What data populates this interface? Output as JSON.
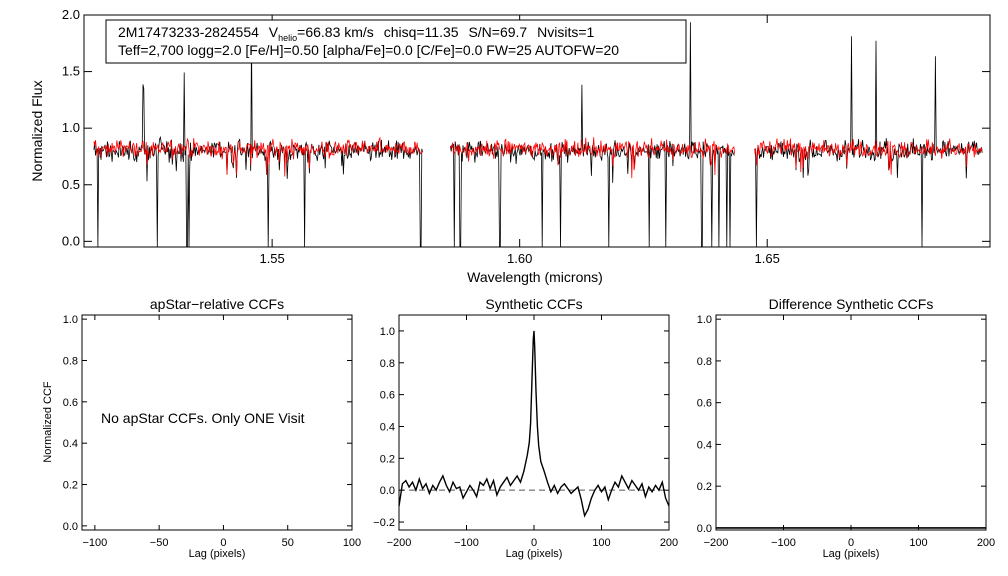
{
  "colors": {
    "observed": "#000000",
    "model": "#ff0000",
    "ccf": "#000000",
    "zero_line": "#555555"
  },
  "header": {
    "star_id": "2M17473233-2824554",
    "v_prefix": "V",
    "v_sub": "helio",
    "v_value": "=66.83 km/s",
    "chisq": "chisq=11.35",
    "snr": "S/N=69.7",
    "nvisits": "Nvisits=1",
    "params": "Teff=2,700 logg=2.0 [Fe/H]=0.50 [alpha/Fe]=0.0 [C/Fe]=0.0 FW=25 AUTOFW=20"
  },
  "panels": {
    "spectrum": {
      "ylabel": "Normalized Flux",
      "xlabel": "Wavelength (microns)"
    },
    "ap_ccf": {
      "title": "apStar−relative CCFs",
      "ylabel": "Normalized CCF",
      "xlabel": "Lag (pixels)",
      "message": "No apStar CCFs.  Only ONE Visit"
    },
    "syn_ccf": {
      "title": "Synthetic CCFs",
      "xlabel": "Lag (pixels)"
    },
    "diff_ccf": {
      "title": "Difference Synthetic CCFs",
      "xlabel": "Lag (pixels)"
    }
  },
  "chart_data": [
    {
      "type": "line",
      "xlim": [
        1.512,
        1.695
      ],
      "ylim": [
        -0.05,
        2.0
      ],
      "xticks": [
        1.55,
        1.6,
        1.65
      ],
      "xtick_labels": [
        "1.55",
        "1.60",
        "1.65"
      ],
      "yticks": [
        0.0,
        0.5,
        1.0,
        1.5,
        2.0
      ],
      "ytick_labels": [
        "0.0",
        "0.5",
        "1.0",
        "1.5",
        "2.0"
      ],
      "chip_ranges": [
        [
          1.514,
          1.5805
        ],
        [
          1.586,
          1.6435
        ],
        [
          1.6475,
          1.6935
        ]
      ],
      "series": [
        {
          "role": "observed",
          "mean_level": 0.8,
          "noise": 0.13
        },
        {
          "role": "model",
          "mean_level": 0.82,
          "noise": 0.11
        }
      ],
      "deep_lines": [
        1.5148,
        1.5268,
        1.5328,
        1.5332,
        1.5492,
        1.5565,
        1.58,
        1.5868,
        1.588,
        1.596,
        1.6045,
        1.6082,
        1.618,
        1.6262,
        1.6295,
        1.6368,
        1.6388,
        1.6402,
        1.6418,
        1.6425,
        1.6478,
        1.6812
      ],
      "spikes": [
        1.524,
        1.5322,
        1.5458,
        1.6125,
        1.6345,
        1.667,
        1.672,
        1.684
      ]
    },
    {
      "type": "line",
      "xlim": [
        -110,
        100
      ],
      "ylim": [
        -0.02,
        1.02
      ],
      "xticks": [
        -100,
        -50,
        0,
        50,
        100
      ],
      "xtick_labels": [
        "−100",
        "−50",
        "0",
        "50",
        "100"
      ],
      "yticks": [
        0.0,
        0.2,
        0.4,
        0.6,
        0.8,
        1.0
      ],
      "ytick_labels": [
        "0.0",
        "0.2",
        "0.4",
        "0.6",
        "0.8",
        "1.0"
      ],
      "series": []
    },
    {
      "type": "line",
      "xlim": [
        -200,
        200
      ],
      "ylim": [
        -0.25,
        1.1
      ],
      "xticks": [
        -200,
        -100,
        0,
        100,
        200
      ],
      "xtick_labels": [
        "−200",
        "−100",
        "0",
        "100",
        "200"
      ],
      "yticks": [
        -0.2,
        0.0,
        0.2,
        0.4,
        0.6,
        0.8,
        1.0
      ],
      "ytick_labels": [
        "−0.2",
        "0.0",
        "0.2",
        "0.4",
        "0.6",
        "0.8",
        "1.0"
      ],
      "zero_line": 0.0,
      "series": [
        {
          "x": [
            -200,
            -195,
            -190,
            -185,
            -180,
            -175,
            -170,
            -165,
            -160,
            -155,
            -150,
            -145,
            -140,
            -135,
            -130,
            -125,
            -120,
            -115,
            -110,
            -105,
            -100,
            -95,
            -90,
            -85,
            -80,
            -75,
            -70,
            -65,
            -60,
            -55,
            -50,
            -45,
            -40,
            -35,
            -30,
            -25,
            -20,
            -15,
            -10,
            -7,
            -5,
            -3,
            -1,
            0,
            1,
            3,
            5,
            7,
            10,
            15,
            20,
            25,
            30,
            35,
            40,
            45,
            50,
            55,
            60,
            65,
            70,
            75,
            80,
            85,
            90,
            95,
            100,
            105,
            110,
            115,
            120,
            125,
            130,
            135,
            140,
            145,
            150,
            155,
            160,
            165,
            170,
            175,
            180,
            185,
            190,
            195,
            200
          ],
          "y": [
            -0.1,
            0.04,
            0.06,
            0.02,
            0.05,
            0.0,
            0.07,
            0.01,
            0.04,
            -0.02,
            0.03,
            0.0,
            0.05,
            0.09,
            0.03,
            -0.01,
            0.05,
            0.01,
            0.02,
            -0.05,
            -0.01,
            0.03,
            0.0,
            -0.04,
            0.05,
            0.03,
            0.07,
            0.01,
            0.06,
            -0.03,
            0.02,
            0.05,
            0.08,
            0.03,
            0.06,
            0.09,
            0.05,
            0.12,
            0.22,
            0.3,
            0.42,
            0.7,
            0.95,
            1.0,
            0.9,
            0.62,
            0.4,
            0.28,
            0.18,
            0.12,
            0.05,
            -0.01,
            0.03,
            -0.02,
            0.02,
            0.04,
            0.01,
            -0.02,
            0.0,
            0.02,
            -0.06,
            -0.16,
            -0.12,
            -0.05,
            0.0,
            0.03,
            -0.01,
            0.02,
            -0.06,
            0.0,
            0.05,
            0.02,
            0.09,
            0.05,
            0.01,
            0.06,
            0.03,
            0.0,
            0.04,
            -0.04,
            0.02,
            -0.01,
            0.03,
            0.0,
            0.05,
            -0.05,
            -0.1
          ]
        }
      ]
    },
    {
      "type": "line",
      "xlim": [
        -200,
        200
      ],
      "ylim": [
        -0.01,
        1.02
      ],
      "xticks": [
        -200,
        -100,
        0,
        100,
        200
      ],
      "xtick_labels": [
        "−200",
        "−100",
        "0",
        "100",
        "200"
      ],
      "yticks": [
        0.0,
        0.2,
        0.4,
        0.6,
        0.8,
        1.0
      ],
      "ytick_labels": [
        "0.0",
        "0.2",
        "0.4",
        "0.6",
        "0.8",
        "1.0"
      ],
      "baseline": 0.0,
      "series": []
    }
  ]
}
